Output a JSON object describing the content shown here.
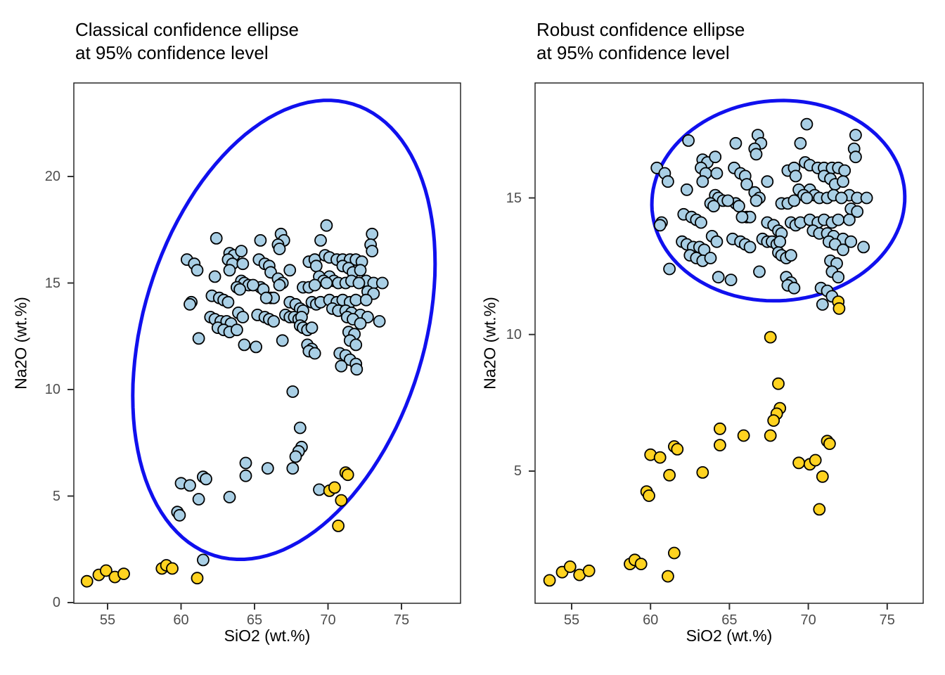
{
  "chart_data": {
    "type": "scatter",
    "figure_title": "",
    "panels": [
      {
        "id": "classical",
        "title": "Classical confidence ellipse\nat 95% confidence level",
        "xlabel": "SiO2 (wt.%)",
        "ylabel": "Na2O (wt.%)",
        "x_ticks": [
          55,
          60,
          65,
          70,
          75
        ],
        "y_ticks": [
          0,
          5,
          10,
          15,
          20
        ],
        "x_range": [
          52.7,
          79.0
        ],
        "y_range": [
          -0.05,
          24.4
        ],
        "grid": "off",
        "legend": "none",
        "ellipse": {
          "cx": 67.0,
          "cy": 12.8,
          "ux": 4.7,
          "uy": 10.6,
          "vx": 9.15,
          "vy": -1.93
        },
        "outlier_field": "classical_outlier"
      },
      {
        "id": "robust",
        "title": "Robust confidence ellipse\nat 95% confidence level",
        "xlabel": "SiO2 (wt.%)",
        "ylabel": "Na2O (wt.%)",
        "x_ticks": [
          55,
          60,
          65,
          70,
          75
        ],
        "y_ticks": [
          5,
          10,
          15
        ],
        "x_range": [
          52.7,
          77.3
        ],
        "y_range": [
          0.15,
          19.2
        ],
        "grid": "off",
        "legend": "none",
        "ellipse": {
          "cx": 68.1,
          "cy": 14.9,
          "ux": 8.0,
          "uy": 0.35,
          "vx": -0.5,
          "vy": 3.65
        },
        "outlier_field": "robust_outlier"
      }
    ],
    "colors": {
      "inlier_fill": "#A9CFE5",
      "outlier_fill": "#FFD320",
      "point_stroke": "#000000",
      "ellipse_stroke": "#1010EE",
      "panel_border": "#1a1a1a",
      "tick_mark": "#333333",
      "tick_text": "#4d4d4d"
    },
    "points_format": [
      "SiO2",
      "Na2O",
      "classical_outlier",
      "robust_outlier"
    ],
    "points": [
      [
        69.9,
        17.7,
        0,
        0
      ],
      [
        73.0,
        17.3,
        0,
        0
      ],
      [
        72.9,
        16.8,
        0,
        0
      ],
      [
        73.0,
        16.5,
        0,
        0
      ],
      [
        62.4,
        17.1,
        0,
        0
      ],
      [
        65.4,
        17.0,
        0,
        0
      ],
      [
        66.8,
        17.3,
        0,
        0
      ],
      [
        67.0,
        17.0,
        0,
        0
      ],
      [
        69.5,
        17.0,
        0,
        0
      ],
      [
        60.4,
        16.1,
        0,
        0
      ],
      [
        60.9,
        15.9,
        0,
        0
      ],
      [
        61.1,
        15.6,
        0,
        0
      ],
      [
        62.3,
        15.3,
        0,
        0
      ],
      [
        63.3,
        16.4,
        0,
        0
      ],
      [
        63.6,
        16.3,
        0,
        0
      ],
      [
        64.1,
        16.5,
        0,
        0
      ],
      [
        63.2,
        16.1,
        0,
        0
      ],
      [
        63.5,
        15.9,
        0,
        0
      ],
      [
        63.3,
        15.6,
        0,
        0
      ],
      [
        64.2,
        15.9,
        0,
        0
      ],
      [
        65.3,
        16.1,
        0,
        0
      ],
      [
        65.7,
        15.9,
        0,
        0
      ],
      [
        66.0,
        15.8,
        0,
        0
      ],
      [
        66.1,
        15.5,
        0,
        0
      ],
      [
        66.6,
        16.8,
        0,
        0
      ],
      [
        66.7,
        16.6,
        0,
        0
      ],
      [
        67.4,
        15.6,
        0,
        0
      ],
      [
        66.6,
        15.2,
        0,
        0
      ],
      [
        66.9,
        15.0,
        0,
        0
      ],
      [
        66.7,
        14.9,
        0,
        0
      ],
      [
        68.7,
        16.0,
        0,
        0
      ],
      [
        69.1,
        16.1,
        0,
        0
      ],
      [
        69.8,
        16.3,
        0,
        0
      ],
      [
        70.1,
        16.2,
        0,
        0
      ],
      [
        70.6,
        16.1,
        0,
        0
      ],
      [
        71.0,
        16.1,
        0,
        0
      ],
      [
        71.5,
        16.1,
        0,
        0
      ],
      [
        71.9,
        16.1,
        0,
        0
      ],
      [
        72.3,
        16.0,
        0,
        0
      ],
      [
        71.0,
        15.8,
        0,
        0
      ],
      [
        71.4,
        15.7,
        0,
        0
      ],
      [
        71.7,
        15.5,
        0,
        0
      ],
      [
        72.2,
        15.6,
        0,
        0
      ],
      [
        72.6,
        15.1,
        0,
        0
      ],
      [
        73.1,
        15.0,
        0,
        0
      ],
      [
        73.7,
        15.0,
        0,
        0
      ],
      [
        72.7,
        14.6,
        0,
        0
      ],
      [
        73.1,
        14.5,
        0,
        0
      ],
      [
        70.1,
        15.3,
        0,
        0
      ],
      [
        70.4,
        15.1,
        0,
        0
      ],
      [
        70.7,
        15.0,
        0,
        0
      ],
      [
        71.2,
        15.0,
        0,
        0
      ],
      [
        71.6,
        15.1,
        0,
        0
      ],
      [
        72.1,
        15.0,
        0,
        0
      ],
      [
        69.2,
        15.8,
        0,
        0
      ],
      [
        69.4,
        15.3,
        0,
        0
      ],
      [
        69.7,
        15.1,
        0,
        0
      ],
      [
        69.9,
        15.0,
        0,
        0
      ],
      [
        68.3,
        14.8,
        0,
        0
      ],
      [
        68.7,
        14.8,
        0,
        0
      ],
      [
        69.1,
        14.9,
        0,
        0
      ],
      [
        67.4,
        14.1,
        0,
        0
      ],
      [
        67.8,
        14.0,
        0,
        0
      ],
      [
        68.1,
        13.8,
        0,
        0
      ],
      [
        68.3,
        13.7,
        0,
        0
      ],
      [
        68.9,
        14.1,
        0,
        0
      ],
      [
        69.2,
        14.0,
        0,
        0
      ],
      [
        69.5,
        14.1,
        0,
        0
      ],
      [
        70.1,
        14.2,
        0,
        0
      ],
      [
        70.6,
        14.1,
        0,
        0
      ],
      [
        71.0,
        14.2,
        0,
        0
      ],
      [
        71.5,
        14.1,
        0,
        0
      ],
      [
        71.9,
        14.2,
        0,
        0
      ],
      [
        72.6,
        14.2,
        0,
        0
      ],
      [
        70.3,
        13.8,
        0,
        0
      ],
      [
        70.7,
        13.7,
        0,
        0
      ],
      [
        71.2,
        13.7,
        0,
        0
      ],
      [
        71.6,
        13.6,
        0,
        0
      ],
      [
        72.2,
        13.5,
        0,
        0
      ],
      [
        72.7,
        13.4,
        0,
        0
      ],
      [
        73.5,
        13.2,
        0,
        0
      ],
      [
        67.1,
        13.5,
        0,
        0
      ],
      [
        67.4,
        13.4,
        0,
        0
      ],
      [
        67.7,
        13.4,
        0,
        0
      ],
      [
        68.0,
        13.3,
        0,
        0
      ],
      [
        68.2,
        13.4,
        0,
        0
      ],
      [
        66.1,
        14.3,
        0,
        0
      ],
      [
        66.3,
        14.3,
        0,
        0
      ],
      [
        65.4,
        14.8,
        0,
        0
      ],
      [
        65.6,
        14.7,
        0,
        0
      ],
      [
        65.8,
        14.3,
        0,
        0
      ],
      [
        64.1,
        15.1,
        0,
        0
      ],
      [
        64.3,
        15.0,
        0,
        0
      ],
      [
        64.6,
        14.9,
        0,
        0
      ],
      [
        64.9,
        14.9,
        0,
        0
      ],
      [
        63.8,
        14.8,
        0,
        0
      ],
      [
        64.0,
        14.7,
        0,
        0
      ],
      [
        62.1,
        14.4,
        0,
        0
      ],
      [
        62.6,
        14.3,
        0,
        0
      ],
      [
        62.9,
        14.2,
        0,
        0
      ],
      [
        63.2,
        14.1,
        0,
        0
      ],
      [
        60.7,
        14.1,
        0,
        0
      ],
      [
        60.6,
        14.0,
        0,
        0
      ],
      [
        62.0,
        13.4,
        0,
        0
      ],
      [
        62.3,
        13.3,
        0,
        0
      ],
      [
        62.7,
        13.2,
        0,
        0
      ],
      [
        63.1,
        13.2,
        0,
        0
      ],
      [
        63.4,
        13.1,
        0,
        0
      ],
      [
        63.9,
        13.6,
        0,
        0
      ],
      [
        64.2,
        13.4,
        0,
        0
      ],
      [
        65.2,
        13.5,
        0,
        0
      ],
      [
        65.7,
        13.4,
        0,
        0
      ],
      [
        66.0,
        13.3,
        0,
        0
      ],
      [
        66.3,
        13.2,
        0,
        0
      ],
      [
        68.1,
        13.0,
        0,
        0
      ],
      [
        68.3,
        12.9,
        0,
        0
      ],
      [
        68.6,
        12.8,
        0,
        0
      ],
      [
        68.9,
        12.9,
        0,
        0
      ],
      [
        71.3,
        13.4,
        0,
        0
      ],
      [
        71.7,
        13.3,
        0,
        0
      ],
      [
        72.2,
        13.1,
        0,
        0
      ],
      [
        71.4,
        12.7,
        0,
        0
      ],
      [
        71.8,
        12.6,
        0,
        0
      ],
      [
        62.5,
        12.9,
        0,
        0
      ],
      [
        62.9,
        12.8,
        0,
        0
      ],
      [
        63.3,
        12.7,
        0,
        0
      ],
      [
        63.8,
        12.8,
        0,
        0
      ],
      [
        61.2,
        12.4,
        0,
        0
      ],
      [
        64.3,
        12.1,
        0,
        0
      ],
      [
        65.1,
        12.0,
        0,
        0
      ],
      [
        66.9,
        12.3,
        0,
        0
      ],
      [
        68.6,
        12.1,
        0,
        0
      ],
      [
        68.9,
        11.9,
        0,
        0
      ],
      [
        68.7,
        11.8,
        0,
        0
      ],
      [
        69.1,
        11.7,
        0,
        0
      ],
      [
        71.5,
        12.3,
        0,
        0
      ],
      [
        71.9,
        12.1,
        0,
        0
      ],
      [
        70.8,
        11.7,
        0,
        0
      ],
      [
        71.2,
        11.6,
        0,
        0
      ],
      [
        71.5,
        11.4,
        0,
        0
      ],
      [
        70.9,
        11.1,
        0,
        0
      ],
      [
        71.9,
        11.2,
        0,
        1
      ],
      [
        71.95,
        10.95,
        0,
        1
      ],
      [
        67.6,
        9.9,
        0,
        1
      ],
      [
        68.1,
        8.2,
        0,
        1
      ],
      [
        68.2,
        7.3,
        0,
        1
      ],
      [
        68.0,
        7.1,
        0,
        1
      ],
      [
        67.8,
        6.85,
        0,
        1
      ],
      [
        67.6,
        6.3,
        0,
        1
      ],
      [
        64.4,
        6.55,
        0,
        1
      ],
      [
        64.4,
        5.95,
        0,
        1
      ],
      [
        65.9,
        6.3,
        0,
        1
      ],
      [
        59.75,
        4.25,
        0,
        1
      ],
      [
        59.9,
        4.1,
        0,
        1
      ],
      [
        60.0,
        5.6,
        0,
        1
      ],
      [
        60.6,
        5.5,
        0,
        1
      ],
      [
        61.5,
        5.9,
        0,
        1
      ],
      [
        61.7,
        5.8,
        0,
        1
      ],
      [
        61.2,
        4.85,
        0,
        1
      ],
      [
        63.3,
        4.95,
        0,
        1
      ],
      [
        69.4,
        5.3,
        0,
        1
      ],
      [
        61.5,
        2.0,
        0,
        1
      ],
      [
        53.6,
        1.0,
        1,
        1
      ],
      [
        54.4,
        1.3,
        1,
        1
      ],
      [
        54.9,
        1.5,
        1,
        1
      ],
      [
        55.5,
        1.2,
        1,
        1
      ],
      [
        56.1,
        1.35,
        1,
        1
      ],
      [
        58.7,
        1.6,
        1,
        1
      ],
      [
        59.0,
        1.75,
        1,
        1
      ],
      [
        59.4,
        1.6,
        1,
        1
      ],
      [
        61.1,
        1.15,
        1,
        1
      ],
      [
        70.1,
        5.25,
        1,
        1
      ],
      [
        70.45,
        5.4,
        1,
        1
      ],
      [
        71.2,
        6.1,
        1,
        1
      ],
      [
        71.35,
        6.0,
        1,
        1
      ],
      [
        70.9,
        4.8,
        1,
        1
      ],
      [
        70.7,
        3.6,
        1,
        1
      ]
    ]
  }
}
